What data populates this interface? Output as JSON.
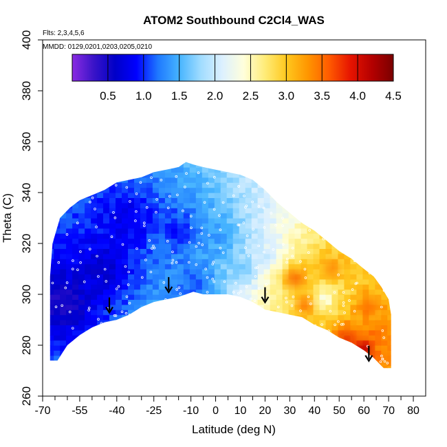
{
  "chart_data": {
    "type": "heatmap",
    "title": "ATOM2 Southbound C2Cl4_WAS",
    "flights_note": "Flts: 2,3,4,5,6",
    "dates_note": "MMDD: 0129,0201,0203,0205,0210",
    "xlabel": "Latitude (deg N)",
    "ylabel": "Theta (C)",
    "xlim": [
      -70,
      85
    ],
    "ylim": [
      260,
      400
    ],
    "x_ticks_major": [
      -70,
      -55,
      -40,
      -25,
      -10,
      0,
      10,
      20,
      30,
      40,
      50,
      60,
      70,
      80
    ],
    "x_ticks_minor": [
      -65,
      -60,
      -50,
      -45,
      -35,
      -30,
      -20,
      -15,
      -5,
      5,
      15,
      25,
      35,
      45,
      55,
      65,
      75
    ],
    "y_ticks": [
      260,
      280,
      300,
      320,
      340,
      360,
      380,
      400
    ],
    "colorbar": {
      "min": 0,
      "max": 4.5,
      "ticks": [
        0.5,
        1.0,
        1.5,
        2.0,
        2.5,
        3.0,
        3.5,
        4.0,
        4.5
      ],
      "tick_labels": [
        "0.5",
        "1.0",
        "1.5",
        "2.0",
        "2.5",
        "3.0",
        "3.5",
        "4.0",
        "4.5"
      ],
      "colors": [
        "#8a2be2",
        "#3a14c8",
        "#0000c8",
        "#0000ff",
        "#1e78ff",
        "#46b4ff",
        "#a0dcff",
        "#dcf0ff",
        "#ffffdc",
        "#ffec78",
        "#ffc81e",
        "#ff9600",
        "#ff5a00",
        "#e61400",
        "#b40000",
        "#7a0000"
      ]
    },
    "field_boundary": {
      "top": [
        [
          -67,
          307
        ],
        [
          -66,
          320
        ],
        [
          -63,
          330
        ],
        [
          -59,
          334
        ],
        [
          -55,
          337
        ],
        [
          -50,
          339
        ],
        [
          -45,
          341
        ],
        [
          -40,
          344
        ],
        [
          -35,
          345
        ],
        [
          -30,
          346
        ],
        [
          -25,
          348
        ],
        [
          -20,
          349
        ],
        [
          -15,
          350
        ],
        [
          -12,
          352
        ],
        [
          -9,
          351
        ],
        [
          -5,
          350
        ],
        [
          0,
          349
        ],
        [
          5,
          348
        ],
        [
          10,
          347
        ],
        [
          15,
          345
        ],
        [
          20,
          341
        ],
        [
          25,
          336
        ],
        [
          30,
          332
        ],
        [
          35,
          328
        ],
        [
          40,
          325
        ],
        [
          45,
          321
        ],
        [
          50,
          317
        ],
        [
          55,
          314
        ],
        [
          60,
          310
        ],
        [
          64,
          307
        ],
        [
          67,
          303
        ],
        [
          70,
          298
        ],
        [
          71,
          292
        ]
      ],
      "bottom": [
        [
          71,
          271
        ],
        [
          68,
          271
        ],
        [
          64,
          275
        ],
        [
          60,
          278
        ],
        [
          55,
          281
        ],
        [
          50,
          283
        ],
        [
          45,
          286
        ],
        [
          40,
          288
        ],
        [
          35,
          291
        ],
        [
          30,
          292
        ],
        [
          25,
          293
        ],
        [
          20,
          294
        ],
        [
          15,
          297
        ],
        [
          10,
          299
        ],
        [
          5,
          300
        ],
        [
          0,
          300
        ],
        [
          -5,
          300
        ],
        [
          -9,
          301
        ],
        [
          -15,
          299
        ],
        [
          -20,
          298
        ],
        [
          -25,
          297
        ],
        [
          -30,
          295
        ],
        [
          -35,
          292
        ],
        [
          -40,
          290
        ],
        [
          -45,
          289
        ],
        [
          -50,
          287
        ],
        [
          -55,
          284
        ],
        [
          -60,
          280
        ],
        [
          -64,
          274
        ],
        [
          -67,
          274
        ]
      ]
    },
    "hotspots": [
      {
        "lat": -62,
        "theta": 297,
        "value": 0.4
      },
      {
        "lat": -45,
        "theta": 310,
        "value": 0.6
      },
      {
        "lat": -35,
        "theta": 330,
        "value": 0.7
      },
      {
        "lat": -15,
        "theta": 325,
        "value": 0.9
      },
      {
        "lat": -8,
        "theta": 305,
        "value": 1.0
      },
      {
        "lat": 2,
        "theta": 322,
        "value": 1.3
      },
      {
        "lat": 10,
        "theta": 310,
        "value": 1.6
      },
      {
        "lat": 20,
        "theta": 315,
        "value": 2.0
      },
      {
        "lat": 27,
        "theta": 298,
        "value": 2.6
      },
      {
        "lat": 32,
        "theta": 306,
        "value": 3.4
      },
      {
        "lat": 36,
        "theta": 296,
        "value": 3.3
      },
      {
        "lat": 44,
        "theta": 298,
        "value": 2.1
      },
      {
        "lat": 47,
        "theta": 310,
        "value": 3.2
      },
      {
        "lat": 40,
        "theta": 285,
        "value": 3.0
      },
      {
        "lat": 53,
        "theta": 282,
        "value": 3.7
      },
      {
        "lat": 60,
        "theta": 278,
        "value": 4.0
      },
      {
        "lat": 62,
        "theta": 295,
        "value": 3.3
      },
      {
        "lat": 68,
        "theta": 275,
        "value": 3.2
      }
    ],
    "arrows": [
      {
        "lat": -43,
        "theta": 295
      },
      {
        "lat": -19,
        "theta": 303
      },
      {
        "lat": 20,
        "theta": 299
      },
      {
        "lat": 62,
        "theta": 276
      }
    ]
  }
}
